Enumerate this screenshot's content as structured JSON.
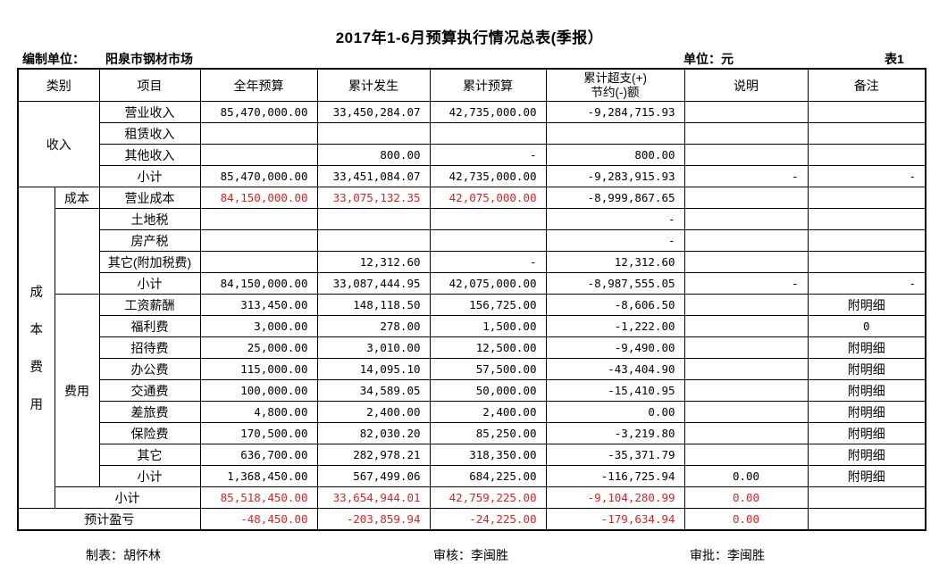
{
  "title": "2017年1-6月预算执行情况总表(季报）",
  "meta": {
    "prepared_by_label": "编制单位：",
    "prepared_by": "阳泉市钢材市场",
    "unit_label": "单位：元",
    "table_no": "表1"
  },
  "header": {
    "category": "类别",
    "item": "项目",
    "annual_budget": "全年预算",
    "cumulative_actual": "累计发生",
    "cumulative_budget": "累计预算",
    "over_save_line1": "累计超支(+)",
    "over_save_line2": "节约(-)额",
    "note": "说明",
    "remark": "备注"
  },
  "groups": {
    "income": "收入",
    "cost_expense_vertical": [
      "成",
      "本",
      "费",
      "用"
    ],
    "cost": "成本",
    "expense": "费用"
  },
  "rows": [
    {
      "item": "营业收入",
      "annual": "85,470,000.00",
      "actual": "33,450,284.07",
      "budget": "42,735,000.00",
      "diff": "-9,284,715.93",
      "note": "",
      "remark": ""
    },
    {
      "item": "租赁收入",
      "annual": "",
      "actual": "",
      "budget": "",
      "diff": "",
      "note": "",
      "remark": ""
    },
    {
      "item": "其他收入",
      "annual": "",
      "actual": "800.00",
      "budget": "-",
      "diff": "800.00",
      "note": "",
      "remark": ""
    },
    {
      "item": "小计",
      "annual": "85,470,000.00",
      "actual": "33,451,084.07",
      "budget": "42,735,000.00",
      "diff": "-9,283,915.93",
      "note": "-",
      "remark": "-"
    },
    {
      "item": "营业成本",
      "annual": "84,150,000.00",
      "actual": "33,075,132.35",
      "budget": "42,075,000.00",
      "diff": "-8,999,867.65",
      "note": "",
      "remark": ""
    },
    {
      "item": "土地税",
      "annual": "",
      "actual": "",
      "budget": "",
      "diff": "-",
      "note": "",
      "remark": ""
    },
    {
      "item": "房产税",
      "annual": "",
      "actual": "",
      "budget": "",
      "diff": "-",
      "note": "",
      "remark": ""
    },
    {
      "item": "其它(附加税费)",
      "annual": "",
      "actual": "12,312.60",
      "budget": "-",
      "diff": "12,312.60",
      "note": "",
      "remark": ""
    },
    {
      "item": "小计",
      "annual": "84,150,000.00",
      "actual": "33,087,444.95",
      "budget": "42,075,000.00",
      "diff": "-8,987,555.05",
      "note": "-",
      "remark": "-"
    },
    {
      "item": "工资薪酬",
      "annual": "313,450.00",
      "actual": "148,118.50",
      "budget": "156,725.00",
      "diff": "-8,606.50",
      "note": "",
      "remark": "附明细"
    },
    {
      "item": "福利费",
      "annual": "3,000.00",
      "actual": "278.00",
      "budget": "1,500.00",
      "diff": "-1,222.00",
      "note": "",
      "remark": "0"
    },
    {
      "item": "招待费",
      "annual": "25,000.00",
      "actual": "3,010.00",
      "budget": "12,500.00",
      "diff": "-9,490.00",
      "note": "",
      "remark": "附明细"
    },
    {
      "item": "办公费",
      "annual": "115,000.00",
      "actual": "14,095.10",
      "budget": "57,500.00",
      "diff": "-43,404.90",
      "note": "",
      "remark": "附明细"
    },
    {
      "item": "交通费",
      "annual": "100,000.00",
      "actual": "34,589.05",
      "budget": "50,000.00",
      "diff": "-15,410.95",
      "note": "",
      "remark": "附明细"
    },
    {
      "item": "差旅费",
      "annual": "4,800.00",
      "actual": "2,400.00",
      "budget": "2,400.00",
      "diff": "0.00",
      "note": "",
      "remark": "附明细"
    },
    {
      "item": "保险费",
      "annual": "170,500.00",
      "actual": "82,030.20",
      "budget": "85,250.00",
      "diff": "-3,219.80",
      "note": "",
      "remark": "附明细"
    },
    {
      "item": "其它",
      "annual": "636,700.00",
      "actual": "282,978.21",
      "budget": "318,350.00",
      "diff": "-35,371.79",
      "note": "",
      "remark": "附明细"
    },
    {
      "item": "小计",
      "annual": "1,368,450.00",
      "actual": "567,499.06",
      "budget": "684,225.00",
      "diff": "-116,725.94",
      "note": "0.00",
      "remark": "附明细"
    },
    {
      "item": "小计",
      "annual": "85,518,450.00",
      "actual": "33,654,944.01",
      "budget": "42,759,225.00",
      "diff": "-9,104,280.99",
      "note": "0.00",
      "remark": ""
    },
    {
      "item": "预计盈亏",
      "annual": "-48,450.00",
      "actual": "-203,859.94",
      "budget": "-24,225.00",
      "diff": "-179,634.94",
      "note": "0.00",
      "remark": ""
    }
  ],
  "footer": {
    "creator": "制表：胡怀林",
    "reviewer": "审核：李闽胜",
    "approver": "审批：李闽胜"
  },
  "colors": {
    "highlight_red": "#d42525",
    "border": "#000000",
    "background": "#ffffff"
  }
}
